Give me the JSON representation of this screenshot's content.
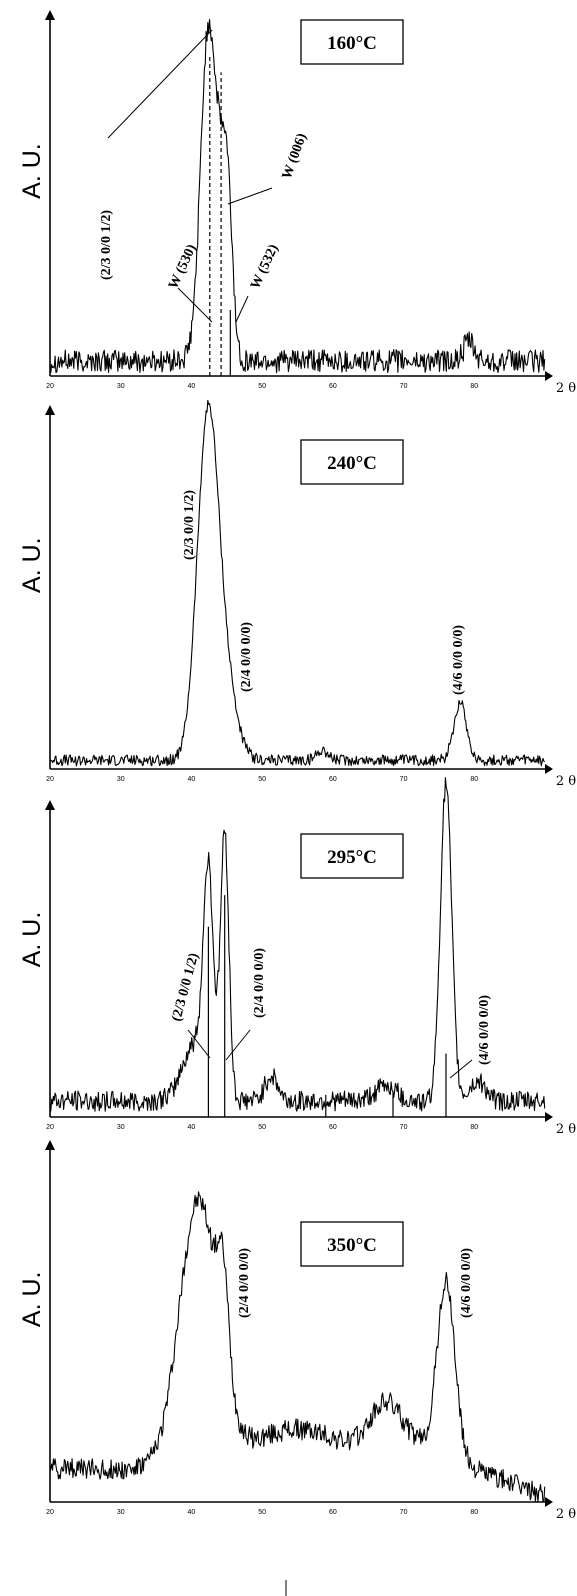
{
  "chart_data": [
    {
      "type": "line",
      "title": "160°C",
      "xlabel": "2 θ",
      "ylabel": "A. U.",
      "xlim": [
        20,
        90
      ],
      "ylim": [
        0,
        100
      ],
      "x_ticks": [
        "20",
        "30",
        "40",
        "50",
        "60",
        "70",
        "80"
      ],
      "grid": false,
      "peaks": [
        {
          "x": 42.4,
          "y": 100,
          "w": 1.1
        },
        {
          "x": 44.6,
          "y": 48,
          "w": 0.9
        },
        {
          "x": 45.3,
          "y": 18,
          "w": 0.6
        },
        {
          "x": 79.2,
          "y": 6,
          "w": 0.7
        }
      ],
      "baseline": 4.5,
      "noise": 3.5,
      "sticks": [
        {
          "x": 42.6,
          "y": 97,
          "style": "dashed"
        },
        {
          "x": 44.2,
          "y": 92,
          "style": "dashed"
        },
        {
          "x": 45.5,
          "y": 20,
          "style": "solid"
        }
      ],
      "annotations": [
        {
          "label": "(2/3 0/0 1/2)",
          "x": 42.4,
          "y": 100
        },
        {
          "label": "W (006)",
          "x": 44.4,
          "y": 48
        },
        {
          "label": "W (530)",
          "x": 42.5,
          "y": 10
        },
        {
          "label": "W (532)",
          "x": 45.2,
          "y": 14
        }
      ]
    },
    {
      "type": "line",
      "title": "240°C",
      "xlabel": "2 θ",
      "ylabel": "A. U.",
      "xlim": [
        20,
        90
      ],
      "ylim": [
        0,
        100
      ],
      "x_ticks": [
        "20",
        "30",
        "40",
        "50",
        "60",
        "70",
        "80"
      ],
      "grid": false,
      "peaks": [
        {
          "x": 42.3,
          "y": 97,
          "w": 1.5
        },
        {
          "x": 44.8,
          "y": 20,
          "w": 1.6
        },
        {
          "x": 78.0,
          "y": 17,
          "w": 0.9
        },
        {
          "x": 58.5,
          "y": 3,
          "w": 0.8
        }
      ],
      "baseline": 2.5,
      "noise": 1.6,
      "sticks": [],
      "annotations": [
        {
          "label": "(2/3 0/0 1/2)",
          "x": 42.3,
          "y": 97
        },
        {
          "label": "(2/4 0/0 0/0)",
          "x": 45.0,
          "y": 20
        },
        {
          "label": "(4/6 0/0 0/0)",
          "x": 78.0,
          "y": 17
        }
      ]
    },
    {
      "type": "line",
      "title": "295°C",
      "xlabel": "2 θ",
      "ylabel": "A. U.",
      "xlim": [
        20,
        90
      ],
      "ylim": [
        0,
        100
      ],
      "x_ticks": [
        "20",
        "30",
        "40",
        "50",
        "60",
        "70",
        "80"
      ],
      "grid": false,
      "peaks": [
        {
          "x": 40.5,
          "y": 18,
          "w": 1.8
        },
        {
          "x": 42.4,
          "y": 66,
          "w": 0.7
        },
        {
          "x": 44.7,
          "y": 84,
          "w": 0.6
        },
        {
          "x": 51.3,
          "y": 8,
          "w": 0.9
        },
        {
          "x": 67.5,
          "y": 5,
          "w": 1.5
        },
        {
          "x": 76.0,
          "y": 100,
          "w": 0.8
        },
        {
          "x": 80.5,
          "y": 6,
          "w": 1.2
        }
      ],
      "baseline": 5,
      "noise": 3.2,
      "sticks": [
        {
          "x": 42.4,
          "y": 60,
          "style": "solid"
        },
        {
          "x": 44.7,
          "y": 70,
          "style": "solid"
        },
        {
          "x": 76.0,
          "y": 20,
          "style": "solid"
        },
        {
          "x": 59.0,
          "y": 7,
          "style": "solid"
        },
        {
          "x": 68.5,
          "y": 8,
          "style": "solid"
        }
      ],
      "annotations": [
        {
          "label": "(2/3 0/0 1/2)",
          "x": 42.4,
          "y": 12
        },
        {
          "label": "(2/4 0/0 0/0)",
          "x": 44.9,
          "y": 12
        },
        {
          "label": "(4/6 0/0 0/0)",
          "x": 77.2,
          "y": 14
        }
      ]
    },
    {
      "type": "line",
      "title": "350°C",
      "xlabel": "2 θ",
      "ylabel": "A. U.",
      "xlim": [
        20,
        90
      ],
      "ylim": [
        0,
        100
      ],
      "x_ticks": [
        "20",
        "30",
        "40",
        "50",
        "60",
        "70",
        "80"
      ],
      "grid": false,
      "peaks": [
        {
          "x": 41.0,
          "y": 80,
          "w": 2.7
        },
        {
          "x": 44.5,
          "y": 28,
          "w": 0.8
        },
        {
          "x": 67.8,
          "y": 18,
          "w": 2.5
        },
        {
          "x": 76.0,
          "y": 56,
          "w": 1.3
        },
        {
          "x": 72.5,
          "y": 4,
          "w": 1.5
        }
      ],
      "baseline": 10,
      "noise": 3.2,
      "tail_decay": true,
      "sticks": [],
      "annotations": [
        {
          "label": "(2/4 0/0 0/0)",
          "x": 44.9,
          "y": 58
        },
        {
          "label": "(4/6 0/0 0/0)",
          "x": 76.0,
          "y": 60
        }
      ]
    }
  ]
}
